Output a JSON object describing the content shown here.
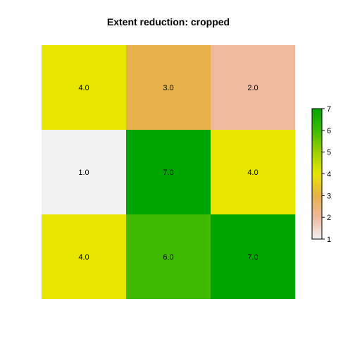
{
  "chart_data": {
    "type": "heatmap",
    "title": "Extent reduction: cropped",
    "rows": 3,
    "cols": 3,
    "values": [
      [
        4,
        3,
        2
      ],
      [
        1,
        7,
        4
      ],
      [
        4,
        6,
        7
      ]
    ],
    "labels": [
      [
        "4.0",
        "3.0",
        "2.0"
      ],
      [
        "1.0",
        "7.0",
        "4.0"
      ],
      [
        "4.0",
        "6.0",
        "7.0"
      ]
    ],
    "legend": {
      "placement": "right",
      "min": 1,
      "max": 7,
      "ticks": [
        {
          "value": 1,
          "label": "1"
        },
        {
          "value": 2,
          "label": "2"
        },
        {
          "value": 3,
          "label": "3"
        },
        {
          "value": 4,
          "label": "4"
        },
        {
          "value": 5,
          "label": "5"
        },
        {
          "value": 6,
          "label": "6"
        },
        {
          "value": 7,
          "label": "7"
        }
      ]
    },
    "palette": [
      {
        "value": 1,
        "color": "#F2F2F2"
      },
      {
        "value": 2,
        "color": "#EEB99F"
      },
      {
        "value": 3,
        "color": "#E6B14A"
      },
      {
        "value": 4,
        "color": "#E6E600"
      },
      {
        "value": 5,
        "color": "#9ED000"
      },
      {
        "value": 6,
        "color": "#3EBB00"
      },
      {
        "value": 7,
        "color": "#00A600"
      }
    ],
    "grid": false
  }
}
